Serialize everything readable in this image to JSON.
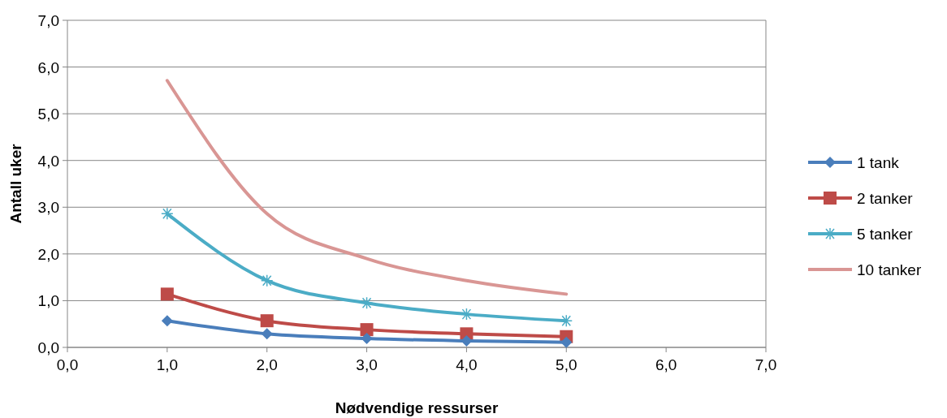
{
  "chart_data": {
    "type": "line",
    "xlabel": "Nødvendige ressurser",
    "ylabel": "Antall uker",
    "xlim": [
      0,
      7
    ],
    "ylim": [
      0,
      7
    ],
    "xticks": [
      {
        "value": 0,
        "label": "0,0"
      },
      {
        "value": 1,
        "label": "1,0"
      },
      {
        "value": 2,
        "label": "2,0"
      },
      {
        "value": 3,
        "label": "3,0"
      },
      {
        "value": 4,
        "label": "4,0"
      },
      {
        "value": 5,
        "label": "5,0"
      },
      {
        "value": 6,
        "label": "6,0"
      },
      {
        "value": 7,
        "label": "7,0"
      }
    ],
    "yticks": [
      {
        "value": 0,
        "label": "0,0"
      },
      {
        "value": 1,
        "label": "1,0"
      },
      {
        "value": 2,
        "label": "2,0"
      },
      {
        "value": 3,
        "label": "3,0"
      },
      {
        "value": 4,
        "label": "4,0"
      },
      {
        "value": 5,
        "label": "5,0"
      },
      {
        "value": 6,
        "label": "6,0"
      },
      {
        "value": 7,
        "label": "7,0"
      }
    ],
    "x": [
      1,
      2,
      3,
      4,
      5
    ],
    "grid": "y",
    "legend": "right",
    "series": [
      {
        "name": "1 tank",
        "color": "#4a7ebb",
        "marker": "diamond",
        "values": [
          0.57,
          0.29,
          0.19,
          0.14,
          0.11
        ]
      },
      {
        "name": "2 tanker",
        "color": "#be4b48",
        "marker": "square",
        "values": [
          1.14,
          0.57,
          0.38,
          0.29,
          0.23
        ]
      },
      {
        "name": "5 tanker",
        "color": "#4bacc6",
        "marker": "cross",
        "values": [
          2.86,
          1.43,
          0.95,
          0.71,
          0.57
        ]
      },
      {
        "name": "10 tanker",
        "color": "#d99694",
        "marker": "none",
        "values": [
          5.71,
          2.86,
          1.9,
          1.43,
          1.14
        ]
      }
    ]
  }
}
